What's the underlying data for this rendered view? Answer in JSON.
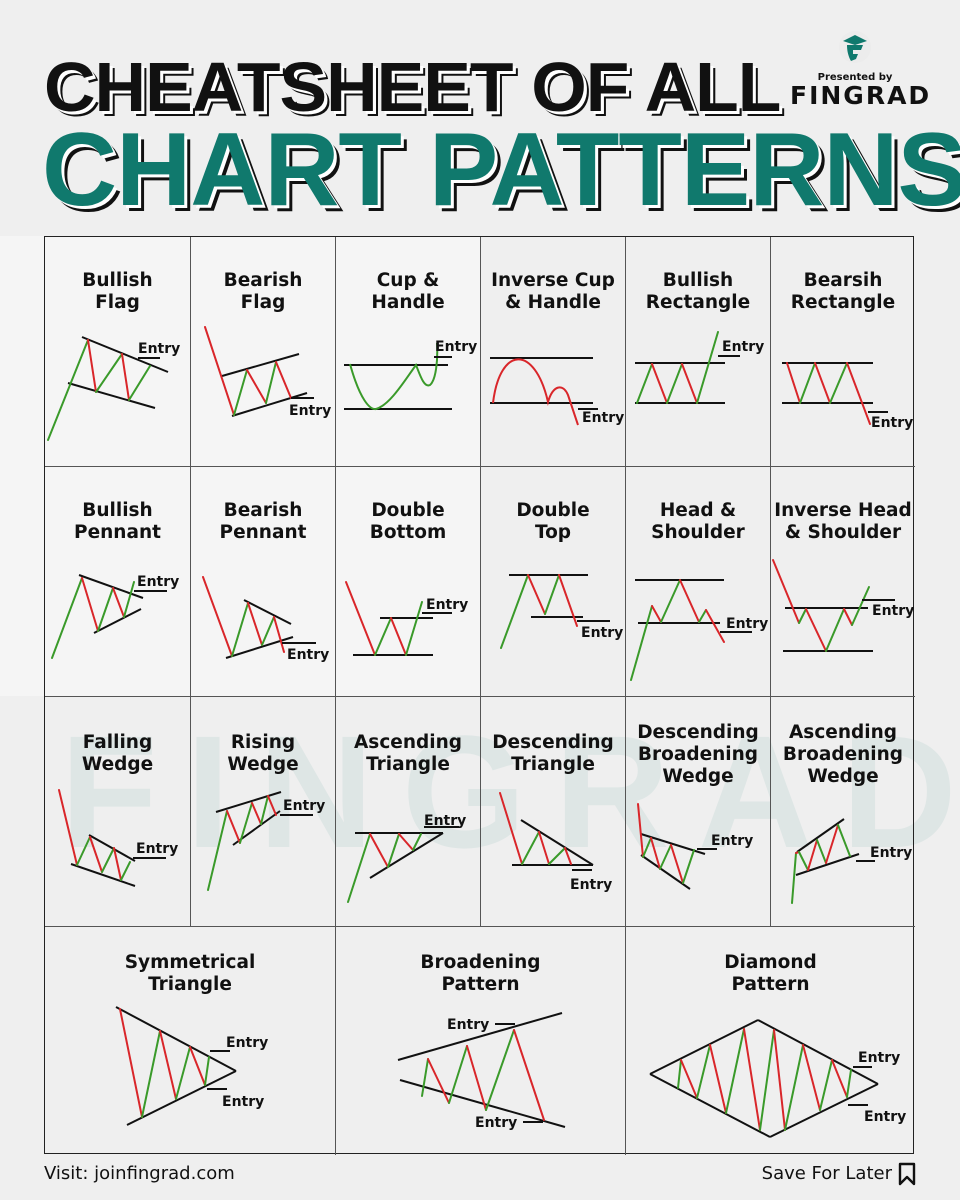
{
  "header": {
    "line1": "CHEATSHEET OF ALL",
    "line2": "CHART PATTERNS",
    "presented_by": "Presented by",
    "brand": "FINGRAD",
    "watermark": "FINGRAD"
  },
  "colors": {
    "accent": "#10796d",
    "bullish": "#3a9a2a",
    "bearish": "#d9262a",
    "line": "#111111"
  },
  "patterns": [
    {
      "title": "Bullish\nFlag",
      "entry_labels": [
        "Entry"
      ]
    },
    {
      "title": "Bearish\nFlag",
      "entry_labels": [
        "Entry"
      ]
    },
    {
      "title": "Cup &\nHandle",
      "entry_labels": [
        "Entry"
      ]
    },
    {
      "title": "Inverse Cup\n& Handle",
      "entry_labels": [
        "Entry"
      ]
    },
    {
      "title": "Bullish\nRectangle",
      "entry_labels": [
        "Entry"
      ]
    },
    {
      "title": "Bearsih\nRectangle",
      "entry_labels": [
        "Entry"
      ]
    },
    {
      "title": "Bullish\nPennant",
      "entry_labels": [
        "Entry"
      ]
    },
    {
      "title": "Bearish\nPennant",
      "entry_labels": [
        "Entry"
      ]
    },
    {
      "title": "Double\nBottom",
      "entry_labels": [
        "Entry"
      ]
    },
    {
      "title": "Double\nTop",
      "entry_labels": [
        "Entry"
      ]
    },
    {
      "title": "Head &\nShoulder",
      "entry_labels": [
        "Entry"
      ]
    },
    {
      "title": "Inverse Head\n& Shoulder",
      "entry_labels": [
        "Entry"
      ]
    },
    {
      "title": "Falling\nWedge",
      "entry_labels": [
        "Entry"
      ]
    },
    {
      "title": "Rising\nWedge",
      "entry_labels": [
        "Entry"
      ]
    },
    {
      "title": "Ascending\nTriangle",
      "entry_labels": [
        "Entry"
      ]
    },
    {
      "title": "Descending\nTriangle",
      "entry_labels": [
        "Entry"
      ]
    },
    {
      "title": "Descending\nBroadening\nWedge",
      "entry_labels": [
        "Entry"
      ]
    },
    {
      "title": "Ascending\nBroadening\nWedge",
      "entry_labels": [
        "Entry"
      ]
    },
    {
      "title": "Symmetrical\nTriangle",
      "entry_labels": [
        "Entry",
        "Entry"
      ]
    },
    {
      "title": "Broadening\nPattern",
      "entry_labels": [
        "Entry",
        "Entry"
      ]
    },
    {
      "title": "Diamond\nPattern",
      "entry_labels": [
        "Entry",
        "Entry"
      ]
    }
  ],
  "footer": {
    "visit": "Visit: joinfingrad.com",
    "save": "Save For Later",
    "save_icon": "bookmark-icon"
  }
}
